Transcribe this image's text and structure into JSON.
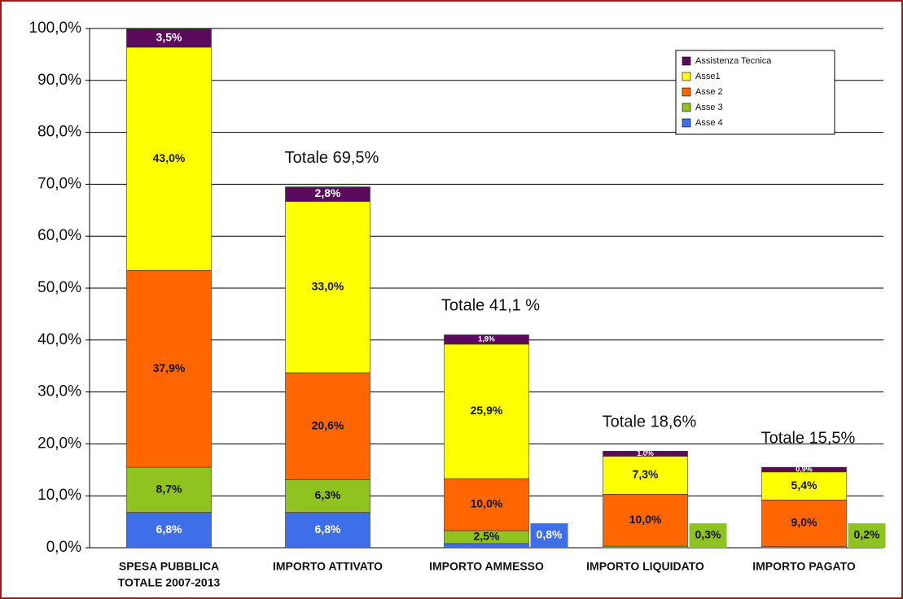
{
  "chart_data": {
    "type": "stacked_bar",
    "categories": [
      [
        "SPESA PUBBLICA",
        "TOTALE 2007-2013"
      ],
      [
        "IMPORTO ATTIVATO"
      ],
      [
        "IMPORTO AMMESSO"
      ],
      [
        "IMPORTO LIQUIDATO"
      ],
      [
        "IMPORTO PAGATO"
      ]
    ],
    "series": [
      {
        "name": "Asse 4",
        "color": "#3f6fe8",
        "values": [
          6.8,
          6.8,
          0.8,
          null,
          null
        ],
        "value_labels": [
          "6,8%",
          "6,8%",
          "0,8%",
          null,
          null
        ]
      },
      {
        "name": "Asse 3",
        "color": "#8fc31f",
        "values": [
          8.7,
          6.3,
          2.5,
          0.3,
          0.2
        ],
        "value_labels": [
          "8,7%",
          "6,3%",
          "2,5%",
          "0,3%",
          "0,2%"
        ]
      },
      {
        "name": "Asse 2",
        "color": "#ff6600",
        "values": [
          37.9,
          20.6,
          10.0,
          10.0,
          9.0
        ],
        "value_labels": [
          "37,9%",
          "20,6%",
          "10,0%",
          "10,0%",
          "9,0%"
        ]
      },
      {
        "name": "Asse1",
        "color": "#ffff00",
        "values": [
          43.0,
          33.0,
          25.9,
          7.3,
          5.4
        ],
        "value_labels": [
          "43,0%",
          "33,0%",
          "25,9%",
          "7,3%",
          "5,4%"
        ]
      },
      {
        "name": "Assistenza Tecnica",
        "color": "#5c0a5c",
        "values": [
          3.5,
          2.8,
          1.8,
          1.0,
          0.9
        ],
        "value_labels": [
          "3,5%",
          "2,8%",
          "1,8%",
          "1,0%",
          "0,9%"
        ]
      }
    ],
    "totals": [
      null,
      "Totale 69,5%",
      "Totale 41,1 %",
      "Totale 18,6%",
      "Totale 15,5%"
    ],
    "ylim": [
      0,
      100
    ],
    "yticks": [
      {
        "value": 0,
        "label": "0,0%"
      },
      {
        "value": 10,
        "label": "10,0%"
      },
      {
        "value": 20,
        "label": "20,0%"
      },
      {
        "value": 30,
        "label": "30,0%"
      },
      {
        "value": 40,
        "label": "40,0%"
      },
      {
        "value": 50,
        "label": "50,0%"
      },
      {
        "value": 60,
        "label": "60,0%"
      },
      {
        "value": 70,
        "label": "70,0%"
      },
      {
        "value": 80,
        "label": "80,0%"
      },
      {
        "value": 90,
        "label": "90,0%"
      },
      {
        "value": 100,
        "label": "100,0%"
      }
    ],
    "grid": true,
    "legend": "top-right"
  }
}
